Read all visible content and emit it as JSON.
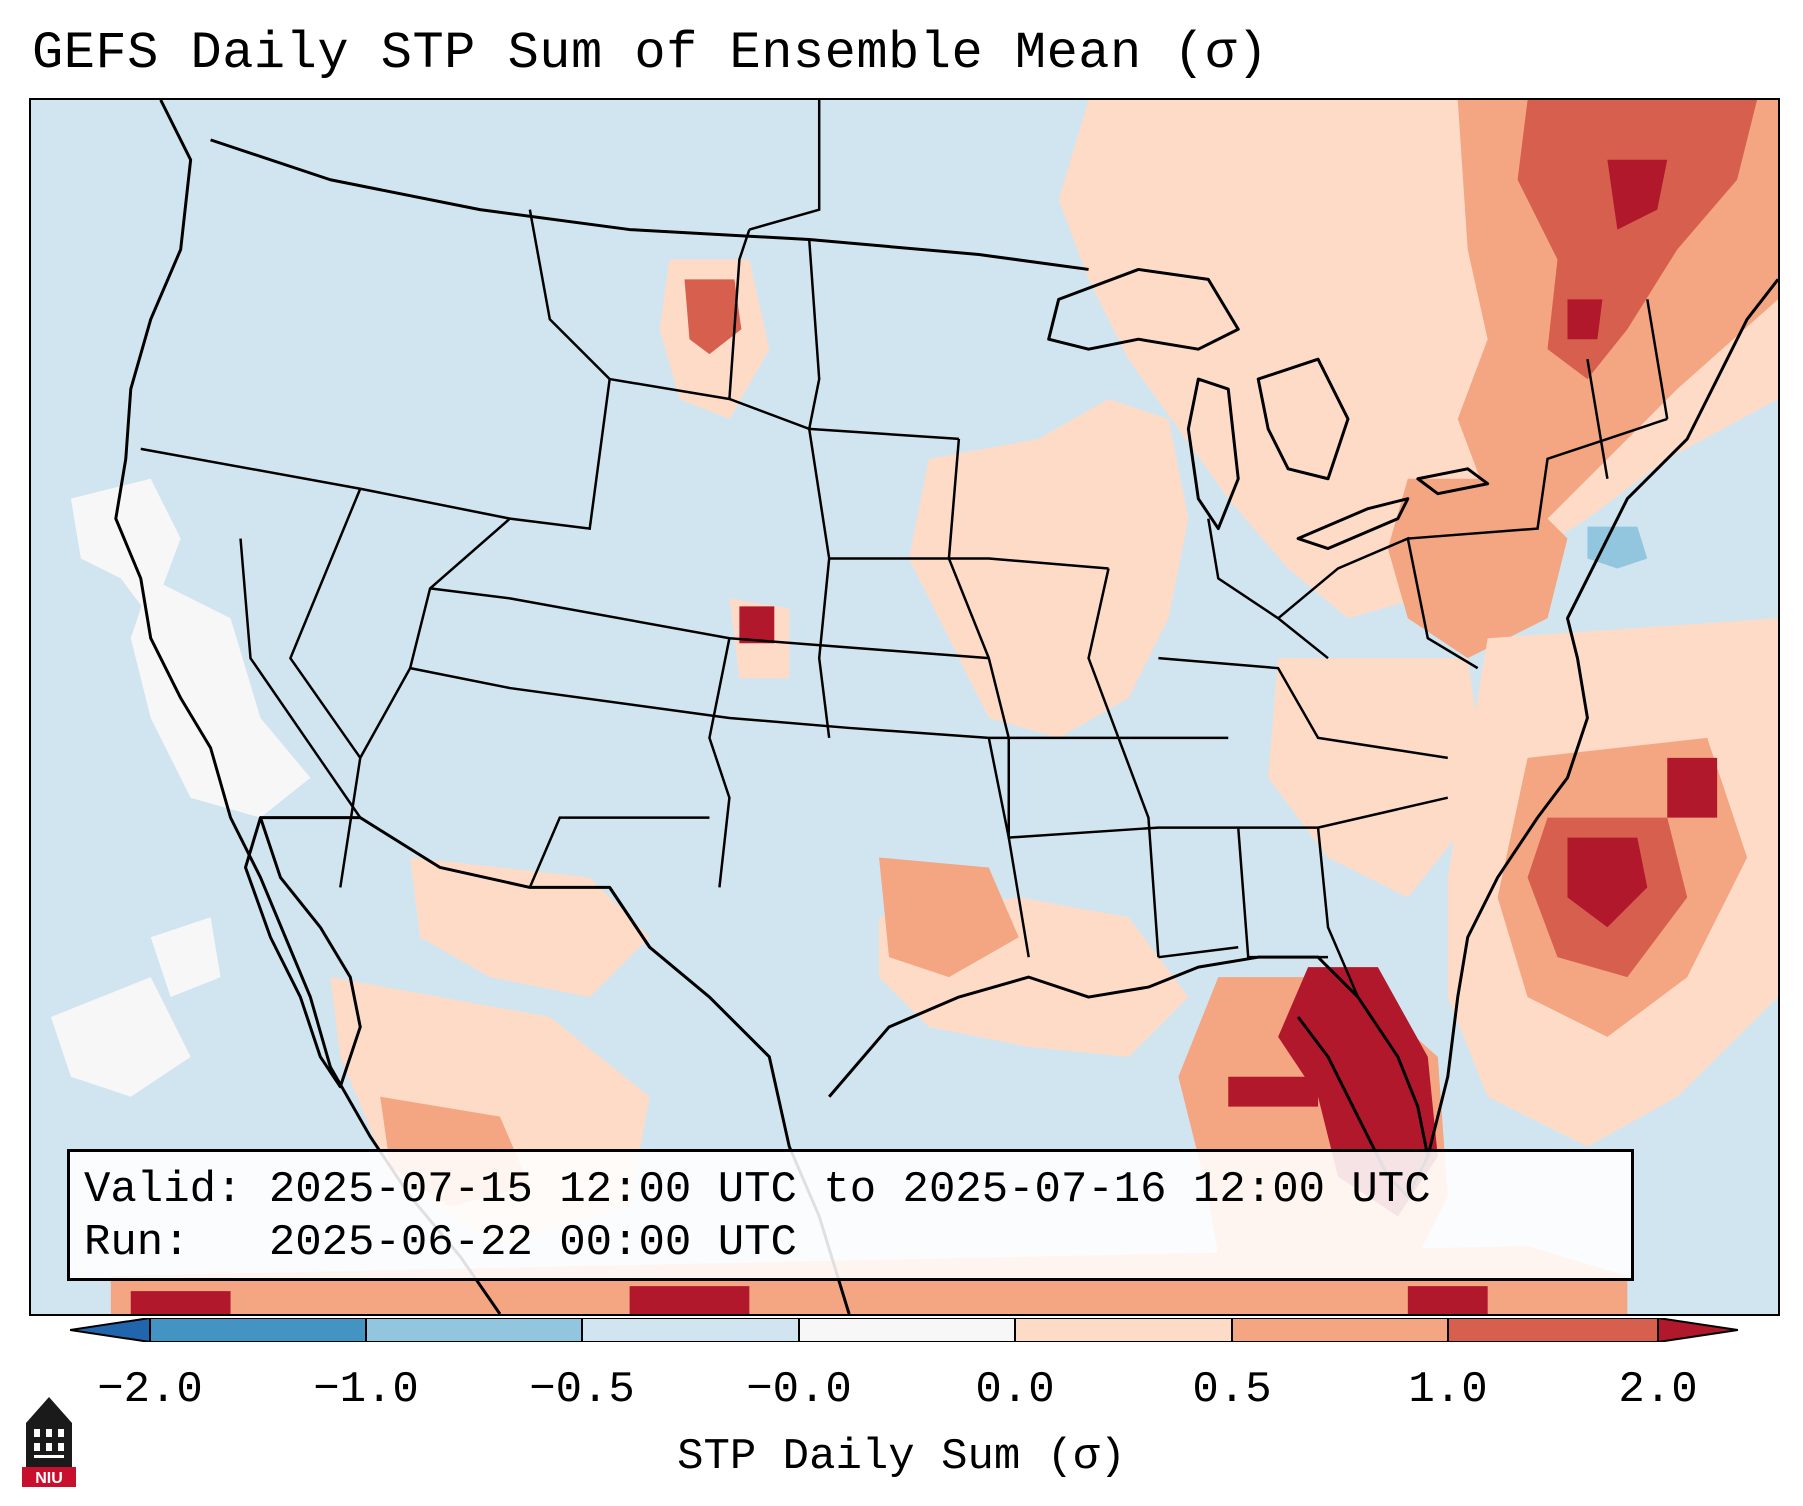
{
  "title": "GEFS Daily STP Sum of Ensemble Mean (σ)",
  "valid_line": "Valid: 2025-07-15 12:00 UTC to 2025-07-16 12:00 UTC",
  "run_line": "Run:   2025-06-22 00:00 UTC",
  "colorbar": {
    "label": "STP Daily Sum (σ)",
    "ticks": [
      "−2.0",
      "−1.0",
      "−0.5",
      "−0.0",
      "0.0",
      "0.5",
      "1.0",
      "2.0"
    ],
    "bins": [
      {
        "range": "< -2.0",
        "color": "#2166ac"
      },
      {
        "range": "-2.0 to -1.0",
        "color": "#4393c3"
      },
      {
        "range": "-1.0 to -0.5",
        "color": "#92c5de"
      },
      {
        "range": "-0.5 to -0.0",
        "color": "#d1e5f0"
      },
      {
        "range": "-0.0 to 0.0",
        "color": "#f7f7f7"
      },
      {
        "range": "0.0 to 0.5",
        "color": "#fddbc7"
      },
      {
        "range": "0.5 to 1.0",
        "color": "#f4a582"
      },
      {
        "range": "1.0 to 2.0",
        "color": "#d6604d"
      },
      {
        "range": "> 2.0",
        "color": "#b2182b"
      }
    ]
  },
  "logo": {
    "text": "NIU",
    "color": "#c8102e"
  },
  "map": {
    "background_color": "#d1e5f0",
    "border_color": "#000000",
    "region": "Continental United States, northern Mexico, Gulf of Mexico, western Atlantic"
  }
}
